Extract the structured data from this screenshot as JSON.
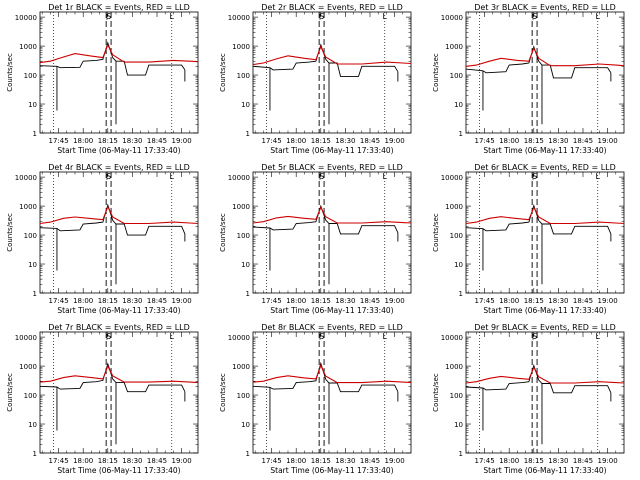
{
  "layout": {
    "rows": 3,
    "cols": 3
  },
  "colors": {
    "events": "#000000",
    "lld": "#cc0000",
    "axes": "#000000",
    "markers": "#000000"
  },
  "chart_data": [
    {
      "type": "line",
      "title": "Det 1r BLACK = Events, RED = LLD",
      "ylabel": "Counts/sec",
      "xlabel": "Start Time (06-May-11 17:33:40)",
      "yscale": "log",
      "ylim": [
        1,
        15000
      ],
      "xticks": [
        "17:45",
        "18:00",
        "18:15",
        "18:30",
        "18:45",
        "19:00"
      ],
      "yticks": [
        "1",
        "10",
        "100",
        "1000",
        "10000"
      ],
      "flags": [
        "S",
        "L"
      ],
      "series": [
        {
          "name": "Events",
          "x": [
            "17:33",
            "17:44",
            "17:46",
            "17:58",
            "18:00",
            "18:08",
            "18:12",
            "18:15",
            "18:18",
            "18:20",
            "18:25",
            "18:27",
            "18:38",
            "18:40",
            "19:00",
            "19:02"
          ],
          "y": [
            210,
            200,
            180,
            185,
            300,
            320,
            350,
            1300,
            400,
            300,
            300,
            100,
            100,
            220,
            220,
            150
          ]
        },
        {
          "name": "LLD",
          "x": [
            "17:33",
            "17:40",
            "17:48",
            "17:55",
            "18:05",
            "18:12",
            "18:15",
            "18:18",
            "18:25",
            "18:40",
            "18:55",
            "19:05",
            "19:10"
          ],
          "y": [
            270,
            300,
            420,
            550,
            450,
            400,
            1100,
            500,
            280,
            280,
            320,
            300,
            290
          ]
        }
      ]
    },
    {
      "type": "line",
      "title": "Det 2r BLACK = Events, RED = LLD",
      "ylabel": "Counts/sec",
      "xlabel": "Start Time (06-May-11 17:33:40)",
      "yscale": "log",
      "ylim": [
        1,
        15000
      ],
      "xticks": [
        "17:45",
        "18:00",
        "18:15",
        "18:30",
        "18:45",
        "19:00"
      ],
      "yticks": [
        "1",
        "10",
        "100",
        "1000",
        "10000"
      ],
      "flags": [
        "S",
        "L"
      ],
      "series": [
        {
          "name": "Events",
          "x": [
            "17:33",
            "17:44",
            "17:46",
            "17:58",
            "18:00",
            "18:08",
            "18:12",
            "18:15",
            "18:18",
            "18:20",
            "18:25",
            "18:27",
            "18:38",
            "18:40",
            "19:00",
            "19:02"
          ],
          "y": [
            200,
            180,
            150,
            160,
            260,
            280,
            300,
            1100,
            350,
            260,
            260,
            90,
            90,
            200,
            200,
            130
          ]
        },
        {
          "name": "LLD",
          "x": [
            "17:33",
            "17:40",
            "17:48",
            "17:55",
            "18:05",
            "18:12",
            "18:15",
            "18:18",
            "18:25",
            "18:40",
            "18:55",
            "19:05",
            "19:10"
          ],
          "y": [
            230,
            260,
            360,
            460,
            380,
            340,
            950,
            420,
            240,
            240,
            280,
            260,
            250
          ]
        }
      ]
    },
    {
      "type": "line",
      "title": "Det 3r BLACK = Events, RED = LLD",
      "ylabel": "Counts/sec",
      "xlabel": "Start Time (06-May-11 17:33:40)",
      "yscale": "log",
      "ylim": [
        1,
        15000
      ],
      "xticks": [
        "17:45",
        "18:00",
        "18:15",
        "18:30",
        "18:45",
        "19:00"
      ],
      "yticks": [
        "1",
        "10",
        "100",
        "1000",
        "10000"
      ],
      "flags": [
        "S",
        "L"
      ],
      "series": [
        {
          "name": "Events",
          "x": [
            "17:33",
            "17:44",
            "17:46",
            "17:58",
            "18:00",
            "18:08",
            "18:12",
            "18:15",
            "18:18",
            "18:20",
            "18:25",
            "18:27",
            "18:38",
            "18:40",
            "19:00",
            "19:02"
          ],
          "y": [
            160,
            140,
            120,
            130,
            220,
            240,
            260,
            950,
            300,
            220,
            220,
            80,
            80,
            180,
            180,
            120
          ]
        },
        {
          "name": "LLD",
          "x": [
            "17:33",
            "17:40",
            "17:48",
            "17:55",
            "18:05",
            "18:12",
            "18:15",
            "18:18",
            "18:25",
            "18:40",
            "18:55",
            "19:05",
            "19:10"
          ],
          "y": [
            200,
            220,
            300,
            380,
            320,
            300,
            850,
            380,
            210,
            210,
            240,
            220,
            210
          ]
        }
      ]
    },
    {
      "type": "line",
      "title": "Det 4r BLACK = Events, RED = LLD",
      "ylabel": "Counts/sec",
      "xlabel": "Start Time (06-May-11 17:33:40)",
      "yscale": "log",
      "ylim": [
        1,
        15000
      ],
      "xticks": [
        "17:45",
        "18:00",
        "18:15",
        "18:30",
        "18:45",
        "19:00"
      ],
      "yticks": [
        "1",
        "10",
        "100",
        "1000",
        "10000"
      ],
      "flags": [
        "S",
        "L"
      ],
      "series": [
        {
          "name": "Events",
          "x": [
            "17:33",
            "17:44",
            "17:46",
            "17:58",
            "18:00",
            "18:08",
            "18:12",
            "18:15",
            "18:18",
            "18:20",
            "18:25",
            "18:27",
            "18:38",
            "18:40",
            "19:00",
            "19:02"
          ],
          "y": [
            180,
            170,
            140,
            150,
            240,
            260,
            280,
            1100,
            320,
            240,
            240,
            100,
            100,
            200,
            200,
            110
          ]
        },
        {
          "name": "LLD",
          "x": [
            "17:33",
            "17:40",
            "17:48",
            "17:55",
            "18:05",
            "18:12",
            "18:15",
            "18:18",
            "18:25",
            "18:40",
            "18:55",
            "19:05",
            "19:10"
          ],
          "y": [
            250,
            280,
            380,
            420,
            370,
            340,
            950,
            420,
            250,
            250,
            280,
            260,
            250
          ]
        }
      ]
    },
    {
      "type": "line",
      "title": "Det 5r BLACK = Events, RED = LLD",
      "ylabel": "Counts/sec",
      "xlabel": "Start Time (06-May-11 17:33:40)",
      "yscale": "log",
      "ylim": [
        1,
        15000
      ],
      "xticks": [
        "17:45",
        "18:00",
        "18:15",
        "18:30",
        "18:45",
        "19:00"
      ],
      "yticks": [
        "1",
        "10",
        "100",
        "1000",
        "10000"
      ],
      "flags": [
        "S",
        "L"
      ],
      "series": [
        {
          "name": "Events",
          "x": [
            "17:33",
            "17:44",
            "17:46",
            "17:58",
            "18:00",
            "18:08",
            "18:12",
            "18:15",
            "18:18",
            "18:20",
            "18:25",
            "18:27",
            "18:38",
            "18:40",
            "19:00",
            "19:02"
          ],
          "y": [
            190,
            175,
            150,
            160,
            250,
            270,
            290,
            1000,
            330,
            250,
            250,
            110,
            110,
            210,
            210,
            120
          ]
        },
        {
          "name": "LLD",
          "x": [
            "17:33",
            "17:40",
            "17:48",
            "17:55",
            "18:05",
            "18:12",
            "18:15",
            "18:18",
            "18:25",
            "18:40",
            "18:55",
            "19:05",
            "19:10"
          ],
          "y": [
            260,
            290,
            390,
            440,
            380,
            350,
            900,
            430,
            260,
            260,
            290,
            270,
            260
          ]
        }
      ]
    },
    {
      "type": "line",
      "title": "Det 6r BLACK = Events, RED = LLD",
      "ylabel": "Counts/sec",
      "xlabel": "Start Time (06-May-11 17:33:40)",
      "yscale": "log",
      "ylim": [
        1,
        15000
      ],
      "xticks": [
        "17:45",
        "18:00",
        "18:15",
        "18:30",
        "18:45",
        "19:00"
      ],
      "yticks": [
        "1",
        "10",
        "100",
        "1000",
        "10000"
      ],
      "flags": [
        "S",
        "L"
      ],
      "series": [
        {
          "name": "Events",
          "x": [
            "17:33",
            "17:44",
            "17:46",
            "17:58",
            "18:00",
            "18:08",
            "18:12",
            "18:15",
            "18:18",
            "18:20",
            "18:25",
            "18:27",
            "18:38",
            "18:40",
            "19:00",
            "19:02"
          ],
          "y": [
            180,
            165,
            140,
            150,
            240,
            260,
            280,
            1050,
            320,
            240,
            240,
            110,
            110,
            200,
            200,
            110
          ]
        },
        {
          "name": "LLD",
          "x": [
            "17:33",
            "17:40",
            "17:48",
            "17:55",
            "18:05",
            "18:12",
            "18:15",
            "18:18",
            "18:25",
            "18:40",
            "18:55",
            "19:05",
            "19:10"
          ],
          "y": [
            250,
            280,
            380,
            430,
            370,
            340,
            900,
            420,
            250,
            250,
            280,
            260,
            250
          ]
        }
      ]
    },
    {
      "type": "line",
      "title": "Det 7r BLACK = Events, RED = LLD",
      "ylabel": "Counts/sec",
      "xlabel": "Start Time (06-May-11 17:33:40)",
      "yscale": "log",
      "ylim": [
        1,
        15000
      ],
      "xticks": [
        "17:45",
        "18:00",
        "18:15",
        "18:30",
        "18:45",
        "19:00"
      ],
      "yticks": [
        "1",
        "10",
        "100",
        "1000",
        "10000"
      ],
      "flags": [
        "S",
        "L"
      ],
      "series": [
        {
          "name": "Events",
          "x": [
            "17:33",
            "17:44",
            "17:46",
            "17:58",
            "18:00",
            "18:08",
            "18:12",
            "18:15",
            "18:18",
            "18:20",
            "18:25",
            "18:27",
            "18:38",
            "18:40",
            "19:00",
            "19:02"
          ],
          "y": [
            200,
            190,
            160,
            170,
            270,
            290,
            320,
            1200,
            360,
            270,
            270,
            130,
            130,
            220,
            220,
            130
          ]
        },
        {
          "name": "LLD",
          "x": [
            "17:33",
            "17:40",
            "17:48",
            "17:55",
            "18:05",
            "18:12",
            "18:15",
            "18:18",
            "18:25",
            "18:40",
            "18:55",
            "19:05",
            "19:10"
          ],
          "y": [
            280,
            300,
            400,
            460,
            400,
            360,
            1000,
            460,
            280,
            280,
            300,
            280,
            270
          ]
        }
      ]
    },
    {
      "type": "line",
      "title": "Det 8r BLACK = Events, RED = LLD",
      "ylabel": "Counts/sec",
      "xlabel": "Start Time (06-May-11 17:33:40)",
      "yscale": "log",
      "ylim": [
        1,
        15000
      ],
      "xticks": [
        "17:45",
        "18:00",
        "18:15",
        "18:30",
        "18:45",
        "19:00"
      ],
      "yticks": [
        "1",
        "10",
        "100",
        "1000",
        "10000"
      ],
      "flags": [
        "S",
        "L"
      ],
      "series": [
        {
          "name": "Events",
          "x": [
            "17:33",
            "17:44",
            "17:46",
            "17:58",
            "18:00",
            "18:08",
            "18:12",
            "18:15",
            "18:18",
            "18:20",
            "18:25",
            "18:27",
            "18:38",
            "18:40",
            "19:00",
            "19:02"
          ],
          "y": [
            200,
            185,
            160,
            170,
            270,
            290,
            310,
            1250,
            350,
            260,
            260,
            130,
            130,
            220,
            220,
            130
          ]
        },
        {
          "name": "LLD",
          "x": [
            "17:33",
            "17:40",
            "17:48",
            "17:55",
            "18:05",
            "18:12",
            "18:15",
            "18:18",
            "18:25",
            "18:40",
            "18:55",
            "19:05",
            "19:10"
          ],
          "y": [
            280,
            300,
            400,
            460,
            390,
            360,
            1050,
            450,
            270,
            270,
            300,
            280,
            270
          ]
        }
      ]
    },
    {
      "type": "line",
      "title": "Det 9r BLACK = Events, RED = LLD",
      "ylabel": "Counts/sec",
      "xlabel": "Start Time (06-May-11 17:33:40)",
      "yscale": "log",
      "ylim": [
        1,
        15000
      ],
      "xticks": [
        "17:45",
        "18:00",
        "18:15",
        "18:30",
        "18:45",
        "19:00"
      ],
      "yticks": [
        "1",
        "10",
        "100",
        "1000",
        "10000"
      ],
      "flags": [
        "S",
        "L"
      ],
      "series": [
        {
          "name": "Events",
          "x": [
            "17:33",
            "17:44",
            "17:46",
            "17:58",
            "18:00",
            "18:08",
            "18:12",
            "18:15",
            "18:18",
            "18:20",
            "18:25",
            "18:27",
            "18:38",
            "18:40",
            "19:00",
            "19:02"
          ],
          "y": [
            190,
            175,
            150,
            160,
            250,
            270,
            290,
            1050,
            330,
            250,
            250,
            120,
            120,
            210,
            210,
            120
          ]
        },
        {
          "name": "LLD",
          "x": [
            "17:33",
            "17:40",
            "17:48",
            "17:55",
            "18:05",
            "18:12",
            "18:15",
            "18:18",
            "18:25",
            "18:40",
            "18:55",
            "19:05",
            "19:10"
          ],
          "y": [
            260,
            290,
            380,
            440,
            380,
            350,
            900,
            430,
            260,
            260,
            290,
            270,
            260
          ]
        }
      ]
    }
  ]
}
